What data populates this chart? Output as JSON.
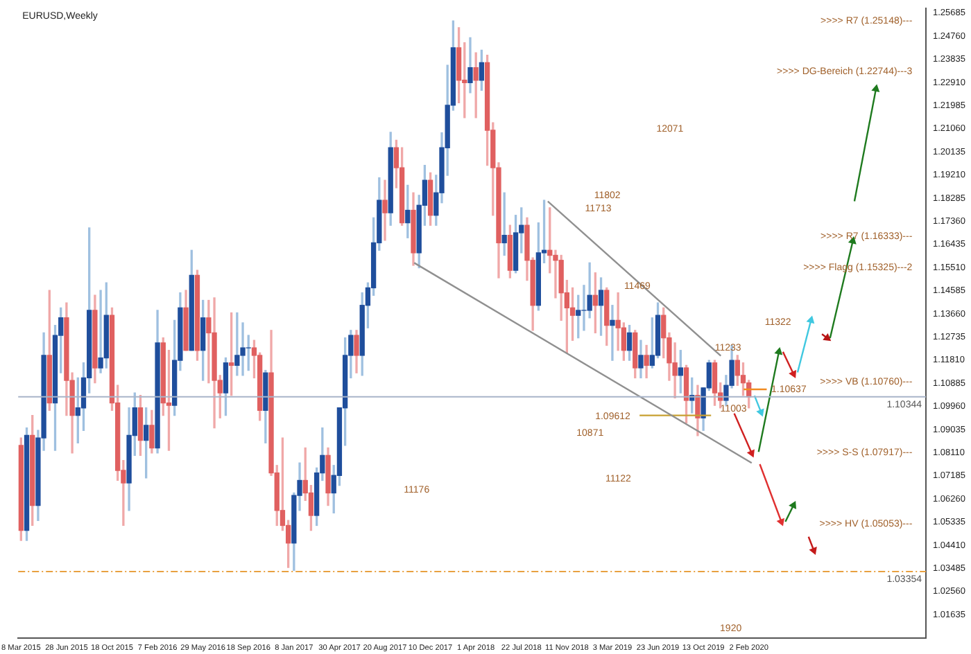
{
  "chart_data": {
    "type": "candlestick",
    "title": "EURUSD,Weekly",
    "x": [
      "2015-03-08",
      "2015-03-22",
      "2015-04-05",
      "2015-04-19",
      "2015-05-03",
      "2015-05-17",
      "2015-05-31",
      "2015-06-14",
      "2015-06-28",
      "2015-07-12",
      "2015-07-26",
      "2015-08-09",
      "2015-08-23",
      "2015-09-06",
      "2015-09-20",
      "2015-10-04",
      "2015-10-18",
      "2015-11-01",
      "2015-11-15",
      "2015-11-29",
      "2015-12-13",
      "2015-12-27",
      "2016-01-10",
      "2016-01-24",
      "2016-02-07",
      "2016-02-21",
      "2016-03-06",
      "2016-03-20",
      "2016-04-03",
      "2016-04-17",
      "2016-05-01",
      "2016-05-15",
      "2016-05-29",
      "2016-06-12",
      "2016-06-26",
      "2016-07-10",
      "2016-07-24",
      "2016-08-07",
      "2016-08-21",
      "2016-09-04",
      "2016-09-18",
      "2016-10-02",
      "2016-10-16",
      "2016-10-30",
      "2016-11-13",
      "2016-11-27",
      "2016-12-11",
      "2016-12-25",
      "2017-01-08",
      "2017-01-22",
      "2017-02-05",
      "2017-02-19",
      "2017-03-05",
      "2017-03-19",
      "2017-04-02",
      "2017-04-16",
      "2017-04-30",
      "2017-05-14",
      "2017-05-28",
      "2017-06-11",
      "2017-06-25",
      "2017-07-09",
      "2017-07-23",
      "2017-08-06",
      "2017-08-20",
      "2017-09-03",
      "2017-09-17",
      "2017-10-01",
      "2017-10-15",
      "2017-10-29",
      "2017-11-12",
      "2017-11-26",
      "2017-12-10",
      "2017-12-24",
      "2018-01-07",
      "2018-01-21",
      "2018-02-04",
      "2018-02-18",
      "2018-03-04",
      "2018-03-18",
      "2018-04-01",
      "2018-04-15",
      "2018-04-29",
      "2018-05-13",
      "2018-05-27",
      "2018-06-10",
      "2018-06-24",
      "2018-07-08",
      "2018-07-22",
      "2018-08-05",
      "2018-08-19",
      "2018-09-02",
      "2018-09-16",
      "2018-09-30",
      "2018-10-14",
      "2018-10-28",
      "2018-11-11",
      "2018-11-25",
      "2018-12-09",
      "2018-12-23",
      "2019-01-06",
      "2019-01-20",
      "2019-02-03",
      "2019-02-17",
      "2019-03-03",
      "2019-03-17",
      "2019-03-31",
      "2019-04-14",
      "2019-04-28",
      "2019-05-12",
      "2019-05-26",
      "2019-06-09",
      "2019-06-23",
      "2019-07-07",
      "2019-07-21",
      "2019-08-04",
      "2019-08-18",
      "2019-09-01",
      "2019-09-15",
      "2019-09-29",
      "2019-10-13",
      "2019-10-27",
      "2019-11-10",
      "2019-11-24",
      "2019-12-08",
      "2019-12-22",
      "2020-01-05",
      "2020-01-19",
      "2020-02-02"
    ],
    "ohlc": [
      [
        1.084,
        1.087,
        1.046,
        1.05
      ],
      [
        1.05,
        1.091,
        1.046,
        1.088
      ],
      [
        1.088,
        1.096,
        1.052,
        1.06
      ],
      [
        1.06,
        1.09,
        1.054,
        1.087
      ],
      [
        1.087,
        1.129,
        1.082,
        1.12
      ],
      [
        1.12,
        1.146,
        1.098,
        1.101
      ],
      [
        1.101,
        1.132,
        1.082,
        1.128
      ],
      [
        1.128,
        1.139,
        1.113,
        1.135
      ],
      [
        1.135,
        1.141,
        1.096,
        1.11
      ],
      [
        1.11,
        1.113,
        1.081,
        1.096
      ],
      [
        1.096,
        1.111,
        1.085,
        1.099
      ],
      [
        1.099,
        1.117,
        1.09,
        1.111
      ],
      [
        1.111,
        1.171,
        1.105,
        1.138
      ],
      [
        1.138,
        1.144,
        1.109,
        1.115
      ],
      [
        1.115,
        1.146,
        1.113,
        1.119
      ],
      [
        1.119,
        1.149,
        1.115,
        1.136
      ],
      [
        1.136,
        1.139,
        1.098,
        1.101
      ],
      [
        1.101,
        1.108,
        1.07,
        1.074
      ],
      [
        1.074,
        1.078,
        1.052,
        1.069
      ],
      [
        1.069,
        1.099,
        1.058,
        1.088
      ],
      [
        1.088,
        1.105,
        1.08,
        1.099
      ],
      [
        1.099,
        1.104,
        1.08,
        1.086
      ],
      [
        1.086,
        1.099,
        1.071,
        1.092
      ],
      [
        1.092,
        1.098,
        1.081,
        1.083
      ],
      [
        1.083,
        1.138,
        1.081,
        1.125
      ],
      [
        1.125,
        1.127,
        1.096,
        1.101
      ],
      [
        1.101,
        1.122,
        1.082,
        1.1
      ],
      [
        1.1,
        1.134,
        1.096,
        1.118
      ],
      [
        1.118,
        1.145,
        1.114,
        1.139
      ],
      [
        1.139,
        1.146,
        1.122,
        1.122
      ],
      [
        1.122,
        1.162,
        1.122,
        1.152
      ],
      [
        1.152,
        1.154,
        1.118,
        1.122
      ],
      [
        1.122,
        1.142,
        1.11,
        1.135
      ],
      [
        1.135,
        1.142,
        1.109,
        1.129
      ],
      [
        1.129,
        1.143,
        1.091,
        1.11
      ],
      [
        1.11,
        1.112,
        1.095,
        1.105
      ],
      [
        1.105,
        1.119,
        1.096,
        1.117
      ],
      [
        1.117,
        1.137,
        1.104,
        1.116
      ],
      [
        1.116,
        1.137,
        1.112,
        1.12
      ],
      [
        1.12,
        1.133,
        1.112,
        1.123
      ],
      [
        1.123,
        1.128,
        1.114,
        1.123
      ],
      [
        1.123,
        1.126,
        1.111,
        1.12
      ],
      [
        1.12,
        1.121,
        1.094,
        1.098
      ],
      [
        1.098,
        1.114,
        1.085,
        1.113
      ],
      [
        1.113,
        1.13,
        1.072,
        1.073
      ],
      [
        1.073,
        1.076,
        1.052,
        1.058
      ],
      [
        1.058,
        1.087,
        1.05,
        1.052
      ],
      [
        1.052,
        1.054,
        1.0352,
        1.045
      ],
      [
        1.045,
        1.065,
        1.034,
        1.064
      ],
      [
        1.064,
        1.077,
        1.058,
        1.07
      ],
      [
        1.07,
        1.083,
        1.062,
        1.065
      ],
      [
        1.065,
        1.068,
        1.05,
        1.056
      ],
      [
        1.056,
        1.075,
        1.052,
        1.073
      ],
      [
        1.073,
        1.091,
        1.07,
        1.08
      ],
      [
        1.08,
        1.083,
        1.06,
        1.065
      ],
      [
        1.065,
        1.076,
        1.057,
        1.072
      ],
      [
        1.072,
        1.099,
        1.068,
        1.099
      ],
      [
        1.099,
        1.127,
        1.084,
        1.12
      ],
      [
        1.12,
        1.13,
        1.111,
        1.128
      ],
      [
        1.128,
        1.13,
        1.113,
        1.12
      ],
      [
        1.12,
        1.145,
        1.112,
        1.14
      ],
      [
        1.14,
        1.149,
        1.131,
        1.147
      ],
      [
        1.147,
        1.175,
        1.144,
        1.165
      ],
      [
        1.165,
        1.191,
        1.162,
        1.182
      ],
      [
        1.182,
        1.19,
        1.166,
        1.177
      ],
      [
        1.177,
        1.2092,
        1.172,
        1.203
      ],
      [
        1.203,
        1.206,
        1.187,
        1.195
      ],
      [
        1.195,
        1.203,
        1.172,
        1.173
      ],
      [
        1.173,
        1.188,
        1.167,
        1.178
      ],
      [
        1.178,
        1.185,
        1.156,
        1.161
      ],
      [
        1.161,
        1.184,
        1.155,
        1.18
      ],
      [
        1.18,
        1.196,
        1.172,
        1.19
      ],
      [
        1.19,
        1.193,
        1.172,
        1.176
      ],
      [
        1.176,
        1.192,
        1.172,
        1.185
      ],
      [
        1.185,
        1.209,
        1.181,
        1.203
      ],
      [
        1.203,
        1.236,
        1.192,
        1.22
      ],
      [
        1.22,
        1.2537,
        1.218,
        1.243
      ],
      [
        1.243,
        1.251,
        1.221,
        1.23
      ],
      [
        1.23,
        1.245,
        1.215,
        1.229
      ],
      [
        1.229,
        1.247,
        1.225,
        1.235
      ],
      [
        1.235,
        1.241,
        1.215,
        1.23
      ],
      [
        1.23,
        1.242,
        1.226,
        1.237
      ],
      [
        1.237,
        1.24,
        1.196,
        1.21
      ],
      [
        1.21,
        1.213,
        1.176,
        1.195
      ],
      [
        1.195,
        1.197,
        1.151,
        1.165
      ],
      [
        1.165,
        1.185,
        1.16,
        1.168
      ],
      [
        1.168,
        1.172,
        1.151,
        1.154
      ],
      [
        1.154,
        1.176,
        1.153,
        1.169
      ],
      [
        1.169,
        1.179,
        1.161,
        1.172
      ],
      [
        1.172,
        1.175,
        1.15,
        1.158
      ],
      [
        1.158,
        1.159,
        1.13,
        1.14
      ],
      [
        1.14,
        1.173,
        1.138,
        1.161
      ],
      [
        1.161,
        1.182,
        1.157,
        1.162
      ],
      [
        1.162,
        1.179,
        1.153,
        1.16
      ],
      [
        1.16,
        1.162,
        1.143,
        1.158
      ],
      [
        1.158,
        1.16,
        1.134,
        1.145
      ],
      [
        1.145,
        1.15,
        1.121,
        1.139
      ],
      [
        1.139,
        1.147,
        1.126,
        1.136
      ],
      [
        1.136,
        1.144,
        1.127,
        1.138
      ],
      [
        1.138,
        1.148,
        1.13,
        1.138
      ],
      [
        1.138,
        1.157,
        1.135,
        1.144
      ],
      [
        1.144,
        1.153,
        1.129,
        1.14
      ],
      [
        1.14,
        1.151,
        1.128,
        1.146
      ],
      [
        1.146,
        1.147,
        1.124,
        1.132
      ],
      [
        1.132,
        1.14,
        1.118,
        1.134
      ],
      [
        1.134,
        1.145,
        1.122,
        1.131
      ],
      [
        1.131,
        1.133,
        1.118,
        1.122
      ],
      [
        1.122,
        1.132,
        1.118,
        1.129
      ],
      [
        1.129,
        1.13,
        1.111,
        1.115
      ],
      [
        1.115,
        1.126,
        1.111,
        1.12
      ],
      [
        1.12,
        1.124,
        1.111,
        1.116
      ],
      [
        1.116,
        1.135,
        1.115,
        1.12
      ],
      [
        1.12,
        1.141,
        1.119,
        1.136
      ],
      [
        1.136,
        1.139,
        1.119,
        1.127
      ],
      [
        1.127,
        1.129,
        1.11,
        1.117
      ],
      [
        1.117,
        1.125,
        1.103,
        1.112
      ],
      [
        1.112,
        1.122,
        1.105,
        1.115
      ],
      [
        1.115,
        1.116,
        1.093,
        1.102
      ],
      [
        1.102,
        1.111,
        1.097,
        1.104
      ],
      [
        1.104,
        1.108,
        1.0879,
        1.095
      ],
      [
        1.095,
        1.107,
        1.09,
        1.107
      ],
      [
        1.107,
        1.118,
        1.106,
        1.117
      ],
      [
        1.117,
        1.118,
        1.1,
        1.105
      ],
      [
        1.105,
        1.109,
        1.099,
        1.102
      ],
      [
        1.102,
        1.112,
        1.1,
        1.108
      ],
      [
        1.108,
        1.124,
        1.107,
        1.118
      ],
      [
        1.118,
        1.12,
        1.108,
        1.112
      ],
      [
        1.112,
        1.117,
        1.104,
        1.109
      ],
      [
        1.109,
        1.11,
        1.099,
        1.1034
      ]
    ],
    "series": [
      {
        "type": "line",
        "color": "#909090",
        "x": [
          "2017-10-31",
          "2020-02-09"
        ],
        "values": [
          1.157,
          1.077
        ]
      },
      {
        "type": "line",
        "color": "#909090",
        "x": [
          "2018-09-25",
          "2019-11-25"
        ],
        "values": [
          1.1816,
          1.1198
        ]
      },
      {
        "type": "line",
        "color": "#c8a030",
        "x": [
          "2019-05-09",
          "2019-11-01"
        ],
        "values": [
          1.096,
          1.096
        ]
      },
      {
        "type": "line",
        "color": "#f08a20",
        "x": [
          "2020-01-20",
          "2020-03-17"
        ],
        "values": [
          1.1064,
          1.1064
        ]
      },
      {
        "type": "line",
        "color": "#d02020",
        "marker": "triangle",
        "x": [
          "2019-12-28",
          "2020-02-09"
        ],
        "values": [
          1.0968,
          1.0809
        ]
      },
      {
        "type": "line",
        "color": "#1e7a1e",
        "marker": "triangle",
        "x": [
          "2020-02-26",
          "2020-04-16"
        ],
        "values": [
          1.0814,
          1.1214
        ]
      },
      {
        "type": "line",
        "color": "#d02020",
        "marker": "triangle",
        "x": [
          "2020-04-26",
          "2020-05-22"
        ],
        "values": [
          1.1214,
          1.1126
        ]
      },
      {
        "type": "line",
        "color": "#40c8e0",
        "marker": "triangle",
        "x": [
          "2020-06-01",
          "2020-07-04"
        ],
        "values": [
          1.1132,
          1.134
        ]
      },
      {
        "type": "line",
        "color": "#b81414",
        "marker": "triangle",
        "x": [
          "2020-07-31",
          "2020-08-13"
        ],
        "values": [
          1.1285,
          1.1269
        ]
      },
      {
        "type": "line",
        "color": "#1e7a1e",
        "marker": "triangle",
        "x": [
          "2020-08-20",
          "2020-10-15"
        ],
        "values": [
          1.1269,
          1.1657
        ]
      },
      {
        "type": "line",
        "color": "#1e7a1e",
        "marker": "triangle",
        "x": [
          "2020-10-19",
          "2020-12-11"
        ],
        "values": [
          1.1816,
          1.2265
        ]
      },
      {
        "type": "line",
        "color": "#40c8e0",
        "marker": "triangle",
        "x": [
          "2020-02-16",
          "2020-03-03"
        ],
        "values": [
          1.1039,
          1.0973
        ]
      },
      {
        "type": "line",
        "color": "#e03030",
        "marker": "triangle",
        "x": [
          "2020-02-29",
          "2020-04-22"
        ],
        "values": [
          1.0765,
          1.0535
        ]
      },
      {
        "type": "line",
        "color": "#1e7a1e",
        "marker": "triangle",
        "x": [
          "2020-05-02",
          "2020-05-22"
        ],
        "values": [
          1.0535,
          1.0601
        ]
      },
      {
        "type": "line",
        "color": "#c41a1a",
        "marker": "triangle",
        "x": [
          "2020-06-28",
          "2020-07-11"
        ],
        "values": [
          1.0475,
          1.042
        ]
      }
    ],
    "ref_lines": [
      {
        "axis": "y",
        "value": 1.10344,
        "label": "1.10344",
        "color": "#a8b4c8"
      },
      {
        "axis": "y",
        "value": 1.03354,
        "label": "1.03354",
        "color": "#e8a040",
        "line_style": "dashed"
      }
    ],
    "annotations": [
      "12071",
      "11802",
      "11713",
      "11469",
      "11322",
      "11233",
      "11003",
      "10871",
      "11122",
      "11176",
      "1.09612",
      "1.10637",
      "1920",
      ">>>> R7 (1.25148)---",
      ">>>> DG-Bereich (1.22744)---3",
      ">>>> R7 (1.16333)---",
      ">>>> Flagg (1.15325)---2",
      ">>>> VB (1.10760)---",
      ">>>> S-S (1.07917)---",
      ">>>> HV (1.05053)---"
    ],
    "xlim": [
      "2015-03-01",
      "2021-04-13"
    ],
    "xticks": [
      {
        "value": "2015-03-08",
        "label": "8 Mar 2015"
      },
      {
        "value": "2015-06-28",
        "label": "28 Jun 2015"
      },
      {
        "value": "2015-10-18",
        "label": "18 Oct 2015"
      },
      {
        "value": "2016-02-07",
        "label": "7 Feb 2016"
      },
      {
        "value": "2016-05-29",
        "label": "29 May 2016"
      },
      {
        "value": "2016-09-18",
        "label": "18 Sep 2016"
      },
      {
        "value": "2017-01-08",
        "label": "8 Jan 2017"
      },
      {
        "value": "2017-04-30",
        "label": "30 Apr 2017"
      },
      {
        "value": "2017-08-20",
        "label": "20 Aug 2017"
      },
      {
        "value": "2017-12-10",
        "label": "10 Dec 2017"
      },
      {
        "value": "2018-04-01",
        "label": "1 Apr 2018"
      },
      {
        "value": "2018-07-22",
        "label": "22 Jul 2018"
      },
      {
        "value": "2018-11-11",
        "label": "11 Nov 2018"
      },
      {
        "value": "2019-03-03",
        "label": "3 Mar 2019"
      },
      {
        "value": "2019-06-23",
        "label": "23 Jun 2019"
      },
      {
        "value": "2019-10-13",
        "label": "13 Oct 2019"
      },
      {
        "value": "2020-02-02",
        "label": "2 Feb 2020"
      }
    ],
    "ylim": [
      1.0071,
      1.2588
    ],
    "yticks": [
      1.25685,
      {
        "value": 1.2476,
        "label": "1.24760"
      },
      1.23835,
      {
        "value": 1.2291,
        "label": "1.22910"
      },
      1.21985,
      {
        "value": 1.2106,
        "label": "1.21060"
      },
      1.20135,
      {
        "value": 1.1921,
        "label": "1.19210"
      },
      1.18285,
      {
        "value": 1.1736,
        "label": "1.17360"
      },
      1.16435,
      {
        "value": 1.1551,
        "label": "1.15510"
      },
      1.14585,
      {
        "value": 1.1366,
        "label": "1.13660"
      },
      1.12735,
      {
        "value": 1.1181,
        "label": "1.11810"
      },
      1.10885,
      {
        "value": 1.0996,
        "label": "1.09960"
      },
      1.09035,
      {
        "value": 1.0811,
        "label": "1.08110"
      },
      1.07185,
      {
        "value": 1.0626,
        "label": "1.06260"
      },
      1.05335,
      {
        "value": 1.0441,
        "label": "1.04410"
      },
      1.03485,
      {
        "value": 1.0256,
        "label": "1.02560"
      },
      1.01635
    ],
    "legend": false,
    "grid": false
  }
}
